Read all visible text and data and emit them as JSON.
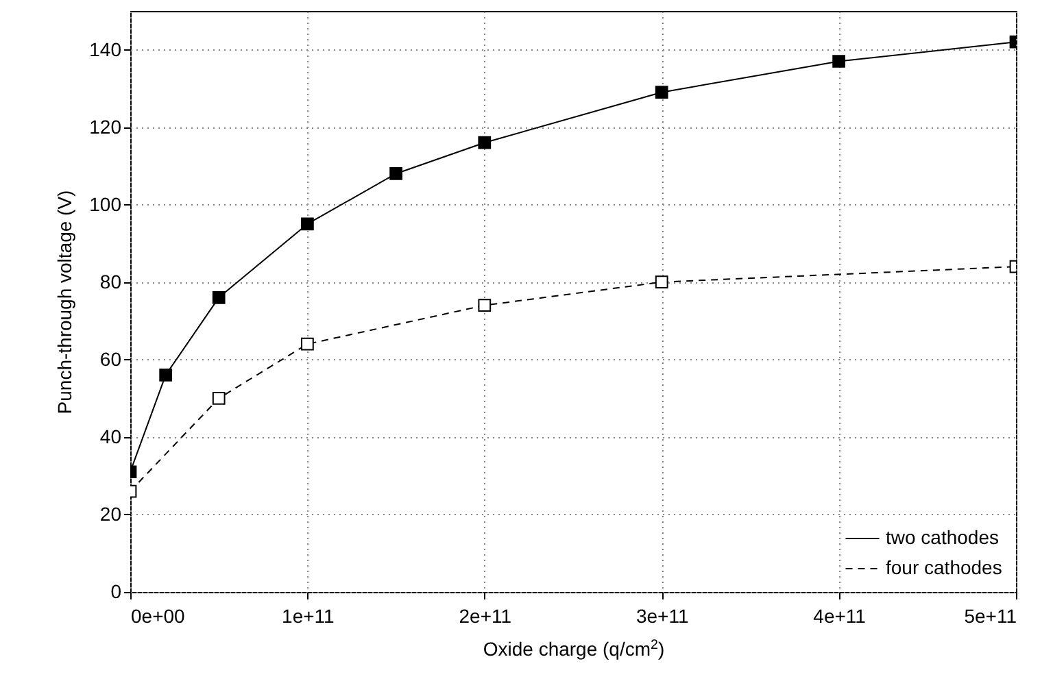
{
  "chart_data": {
    "type": "line",
    "xlabel": "Oxide charge (q/cm$^{2}$)",
    "ylabel": "Punch-through voltage (V)",
    "series": [
      {
        "name": "two cathodes",
        "color": "#000000",
        "line_style": "solid",
        "x": [
          0,
          20000000000,
          50000000000,
          100000000000,
          150000000000,
          200000000000,
          300000000000,
          400000000000,
          500000000000
        ],
        "values": [
          31,
          56,
          76,
          95,
          108,
          116,
          129,
          137,
          142
        ]
      },
      {
        "name": "four cathodes",
        "color": "#000000",
        "line_style": "dashed",
        "x": [
          0,
          50000000000,
          100000000000,
          200000000000,
          300000000000,
          500000000000
        ],
        "values": [
          26,
          50,
          64,
          74,
          80,
          84
        ]
      }
    ],
    "xlim": [
      0,
      500000000000
    ],
    "xticks": [
      {
        "value": 0,
        "label": "0e+00"
      },
      {
        "value": 100000000000,
        "label": "1e+11"
      },
      {
        "value": 200000000000,
        "label": "2e+11"
      },
      {
        "value": 300000000000,
        "label": "3e+11"
      },
      {
        "value": 400000000000,
        "label": "4e+11"
      },
      {
        "value": 500000000000,
        "label": "5e+11"
      }
    ],
    "ylim": [
      0,
      150
    ],
    "yticks": [
      0,
      20,
      40,
      60,
      80,
      100,
      120,
      140
    ],
    "grid": true,
    "legend": "bottom right",
    "marker": "square"
  }
}
